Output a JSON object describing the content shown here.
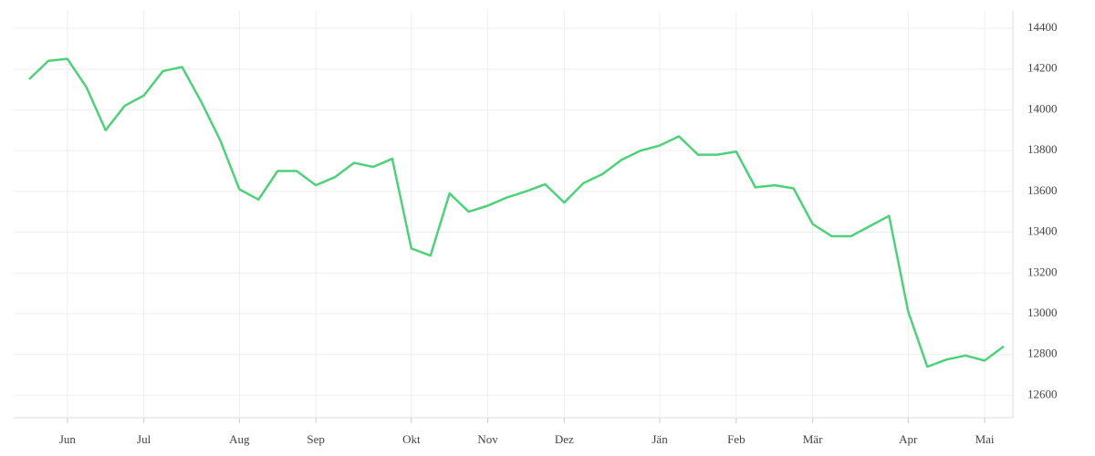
{
  "chart_data": {
    "type": "line",
    "categories": [
      null,
      null,
      "Jun",
      null,
      null,
      null,
      "Jul",
      null,
      null,
      null,
      null,
      "Aug",
      null,
      null,
      null,
      "Sep",
      null,
      null,
      null,
      null,
      "Okt",
      null,
      null,
      null,
      "Nov",
      null,
      null,
      null,
      "Dez",
      null,
      null,
      null,
      null,
      "Jän",
      null,
      null,
      null,
      "Feb",
      null,
      null,
      null,
      "Mär",
      null,
      null,
      null,
      null,
      "Apr",
      null,
      null,
      null,
      "Mai",
      null
    ],
    "series": [
      {
        "color": "#4fd17a",
        "values": [
          14150,
          14240,
          14250,
          14110,
          13900,
          14020,
          14070,
          14190,
          14210,
          14040,
          13850,
          13610,
          13560,
          13700,
          13700,
          13630,
          13670,
          13740,
          13720,
          13760,
          13320,
          13285,
          13590,
          13500,
          13530,
          13570,
          13600,
          13635,
          13545,
          13640,
          13685,
          13755,
          13800,
          13825,
          13870,
          13780,
          13780,
          13795,
          13620,
          13630,
          13615,
          13440,
          13380,
          13380,
          13430,
          13480,
          13010,
          12740,
          12775,
          12795,
          12770,
          12840
        ]
      }
    ],
    "ylim": [
      12490,
      14485
    ],
    "yticks": [
      12600,
      12800,
      13000,
      13200,
      13400,
      13600,
      13800,
      14000,
      14200,
      14400
    ],
    "grid": true,
    "y_axis_side": "right"
  }
}
